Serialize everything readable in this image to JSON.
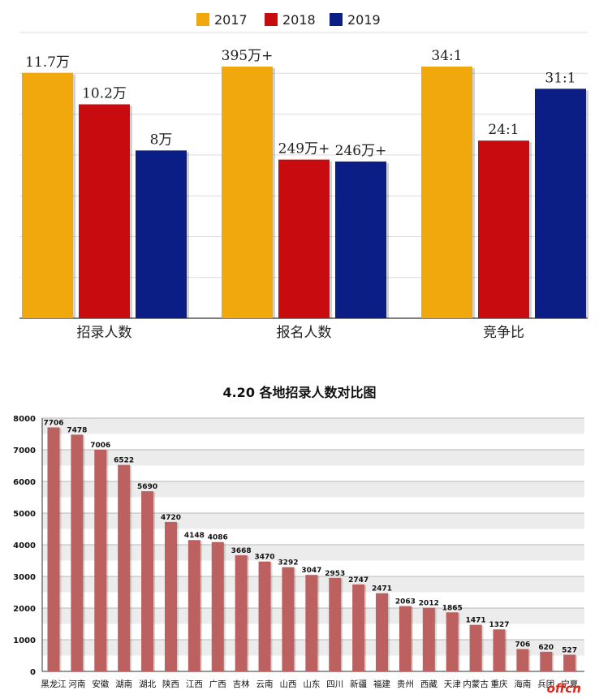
{
  "chart_data": [
    {
      "type": "bar",
      "legend": {
        "placement": "top-center",
        "entries": [
          "2017",
          "2018",
          "2019"
        ]
      },
      "categories": [
        "招录人数",
        "报名人数",
        "竞争比"
      ],
      "series": [
        {
          "name": "2017",
          "color": "#f0a80c",
          "values": [
            11.7,
            395,
            34
          ],
          "labels": [
            "11.7万",
            "395万+",
            "34:1"
          ]
        },
        {
          "name": "2018",
          "color": "#c80b0f",
          "values": [
            10.2,
            249,
            24
          ],
          "labels": [
            "10.2万",
            "249万+",
            "24:1"
          ]
        },
        {
          "name": "2019",
          "color": "#0a1e86",
          "values": [
            8,
            246,
            31
          ],
          "labels": [
            "8万",
            "246万+",
            "31:1"
          ]
        }
      ],
      "value_scale": [
        {
          "category": "招录人数",
          "unit": "万",
          "max": 12
        },
        {
          "category": "报名人数",
          "unit": "万",
          "max": 395
        },
        {
          "category": "竞争比",
          "unit": ":1",
          "max": 34
        }
      ],
      "grid": true
    },
    {
      "type": "bar",
      "title": "4.20 各地招录人数对比图",
      "color": "#bc6060",
      "categories": [
        "黑龙江",
        "河南",
        "安徽",
        "湖南",
        "湖北",
        "陕西",
        "江西",
        "广西",
        "吉林",
        "云南",
        "山西",
        "山东",
        "四川",
        "新疆",
        "福建",
        "贵州",
        "西藏",
        "天津",
        "内蒙古",
        "重庆",
        "海南",
        "兵团",
        "宁夏"
      ],
      "values": [
        7706,
        7478,
        7006,
        6522,
        5690,
        4720,
        4148,
        4086,
        3668,
        3470,
        3292,
        3047,
        2953,
        2747,
        2471,
        2063,
        2012,
        1865,
        1471,
        1327,
        706,
        620,
        527
      ],
      "ylim": [
        0,
        8000
      ],
      "yticks": [
        0,
        1000,
        2000,
        3000,
        4000,
        5000,
        6000,
        7000,
        8000
      ],
      "grid": true
    }
  ],
  "watermark": "offcn"
}
